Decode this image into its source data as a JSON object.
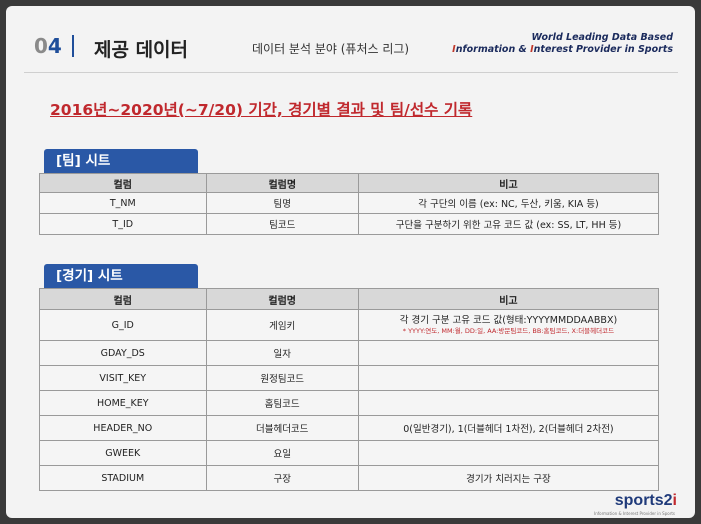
{
  "header": {
    "number_gray": "0",
    "number_accent": "4",
    "title": "제공 데이터",
    "subtitle": "데이터 분석 분야 (퓨처스 리그)",
    "tagline_1": "World Leading Data Based",
    "tagline_2a": "I",
    "tagline_2b": "nformation & ",
    "tagline_2c": "I",
    "tagline_2d": "nterest Provider in Sports"
  },
  "heading": "2016년~2020년(~7/20) 기간, 경기별 결과 및 팀/선수 기록",
  "team_sheet": {
    "tab": "[팀] 시트",
    "columns": [
      "컬럼",
      "컬럼명",
      "비고"
    ],
    "rows": [
      [
        "T_NM",
        "팀명",
        "각 구단의 이름 (ex: NC, 두산, 키움, KIA 등)"
      ],
      [
        "T_ID",
        "팀코드",
        "구단을 구분하기 위한 고유 코드 값 (ex: SS, LT, HH 등)"
      ]
    ]
  },
  "game_sheet": {
    "tab": "[경기] 시트",
    "columns": [
      "컬럼",
      "컬럼명",
      "비고"
    ],
    "gid_row": {
      "col": "G_ID",
      "name": "게임키",
      "note_main": "각 경기 구분 고유 코드 값(형태:YYYYMMDDAABBX)",
      "note_detail": "* YYYY:연도, MM:월, DD:일, AA:방문팀코드, BB:홈팀코드, X:더블헤더코드"
    },
    "rows": [
      [
        "GDAY_DS",
        "일자",
        ""
      ],
      [
        "VISIT_KEY",
        "원정팀코드",
        ""
      ],
      [
        "HOME_KEY",
        "홈팀코드",
        ""
      ],
      [
        "HEADER_NO",
        "더블헤더코드",
        "0(일반경기), 1(더블헤더 1차전), 2(더블헤더 2차전)"
      ],
      [
        "GWEEK",
        "요일",
        ""
      ],
      [
        "STADIUM",
        "구장",
        "경기가 치러지는 구장"
      ]
    ]
  },
  "logo": {
    "text_a": "sports2",
    "text_b": "i",
    "sub": "Information & Interest Provider in Sports"
  }
}
